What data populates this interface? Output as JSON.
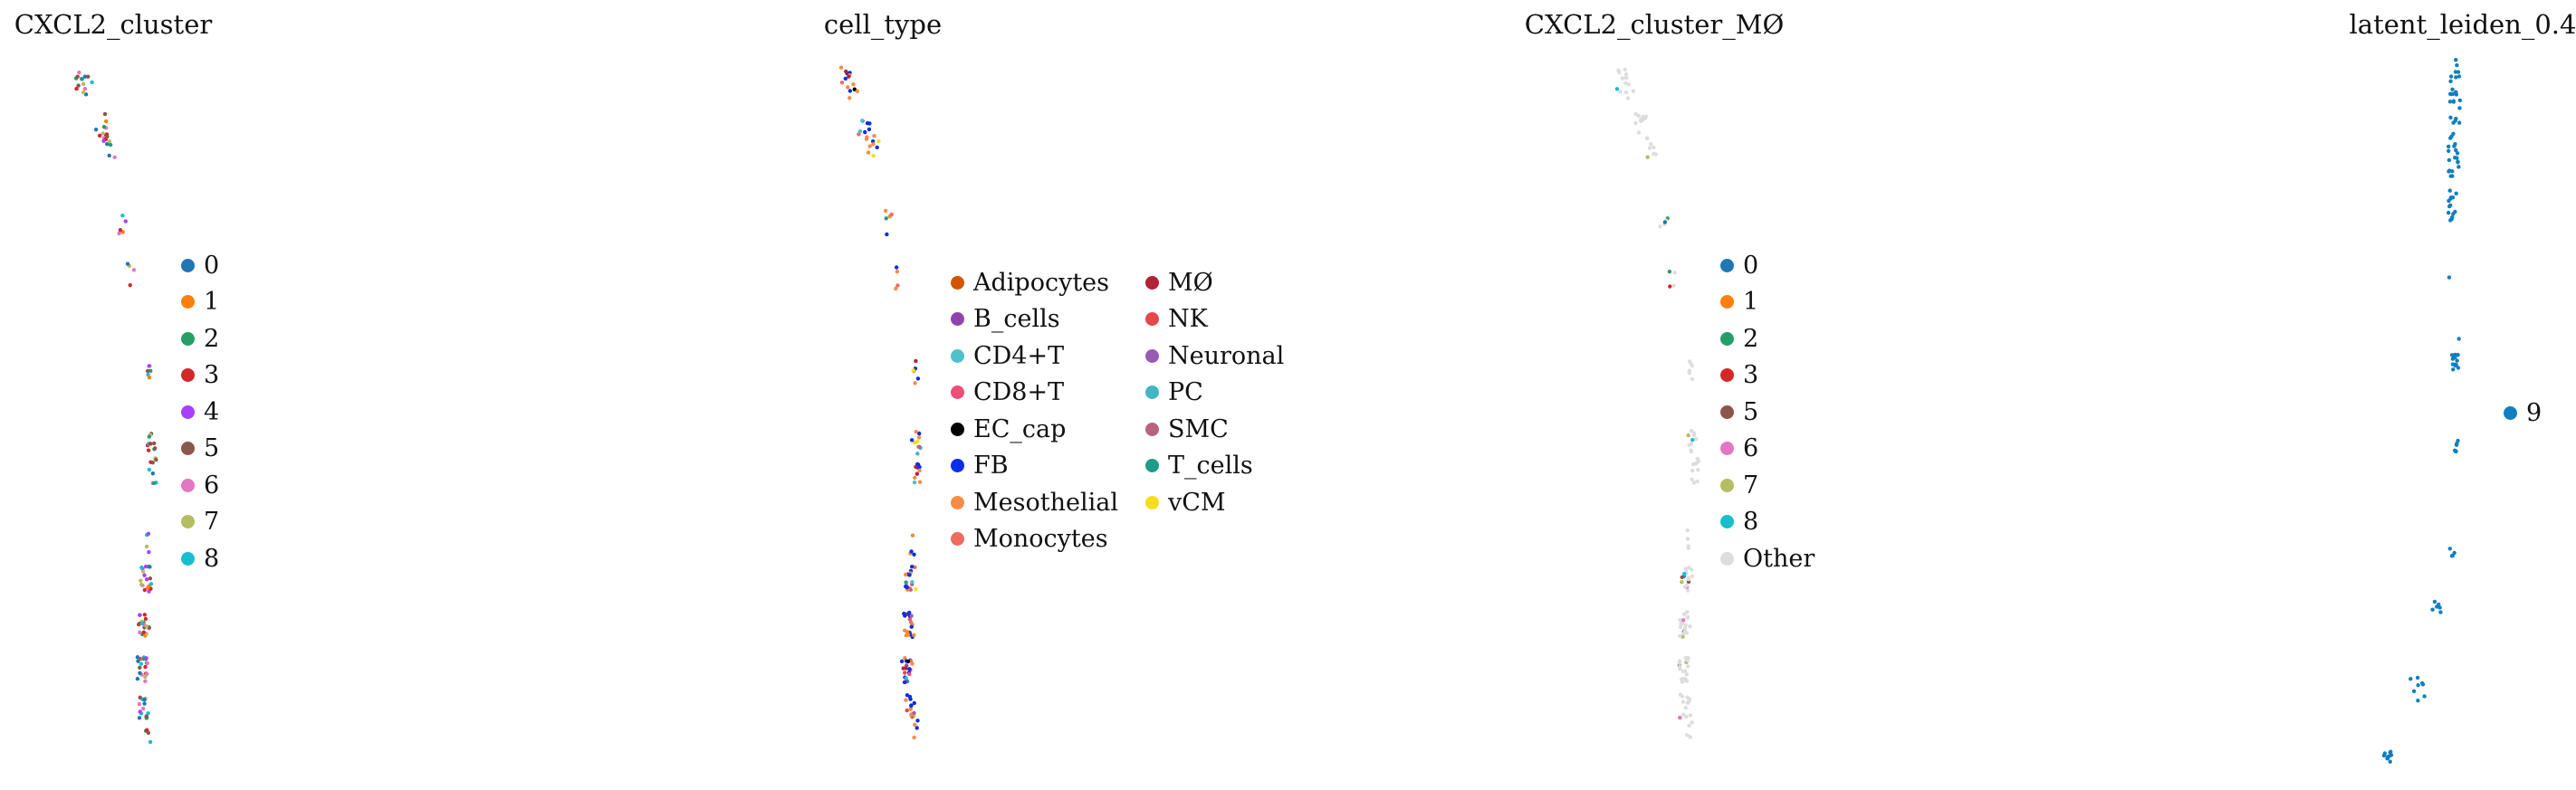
{
  "chart_data": [
    {
      "type": "scatter",
      "title": "CXCL2_cluster",
      "legend": [
        {
          "label": "0",
          "color": "#1f77b4"
        },
        {
          "label": "1",
          "color": "#ff7f0e"
        },
        {
          "label": "2",
          "color": "#279e68"
        },
        {
          "label": "3",
          "color": "#d62728"
        },
        {
          "label": "4",
          "color": "#aa40fc"
        },
        {
          "label": "5",
          "color": "#8c564b"
        },
        {
          "label": "6",
          "color": "#e377c2"
        },
        {
          "label": "7",
          "color": "#b5bd61"
        },
        {
          "label": "8",
          "color": "#17becf"
        }
      ],
      "legend_placement": "right"
    },
    {
      "type": "scatter",
      "title": "cell_type",
      "legend": [
        {
          "label": "Adipocytes",
          "color": "#d45500"
        },
        {
          "label": "B_cells",
          "color": "#8e44ad"
        },
        {
          "label": "CD4+T",
          "color": "#4fc1c9"
        },
        {
          "label": "CD8+T",
          "color": "#ec4f77"
        },
        {
          "label": "EC_cap",
          "color": "#000000"
        },
        {
          "label": "FB",
          "color": "#0a2ee6"
        },
        {
          "label": "Mesothelial",
          "color": "#f58c46"
        },
        {
          "label": "Monocytes",
          "color": "#ef6b60"
        },
        {
          "label": "MØ",
          "color": "#b22234"
        },
        {
          "label": "NK",
          "color": "#e6474a"
        },
        {
          "label": "Neuronal",
          "color": "#9b59b6"
        },
        {
          "label": "PC",
          "color": "#42b4c6"
        },
        {
          "label": "SMC",
          "color": "#b8647d"
        },
        {
          "label": "T_cells",
          "color": "#1e9c85"
        },
        {
          "label": "vCM",
          "color": "#f7dc1f"
        }
      ],
      "legend_placement": "right"
    },
    {
      "type": "scatter",
      "title": "CXCL2_cluster_MØ",
      "legend": [
        {
          "label": "0",
          "color": "#1f77b4"
        },
        {
          "label": "1",
          "color": "#ff7f0e"
        },
        {
          "label": "2",
          "color": "#279e68"
        },
        {
          "label": "3",
          "color": "#d62728"
        },
        {
          "label": "5",
          "color": "#8c564b"
        },
        {
          "label": "6",
          "color": "#e377c2"
        },
        {
          "label": "7",
          "color": "#b5bd61"
        },
        {
          "label": "8",
          "color": "#17becf"
        },
        {
          "label": "Other",
          "color": "#dddddd"
        }
      ],
      "legend_placement": "right"
    },
    {
      "type": "scatter",
      "title": "latent_leiden_0.4",
      "legend": [
        {
          "label": "9",
          "color": "#0f7fbf"
        }
      ],
      "legend_placement": "right"
    }
  ]
}
